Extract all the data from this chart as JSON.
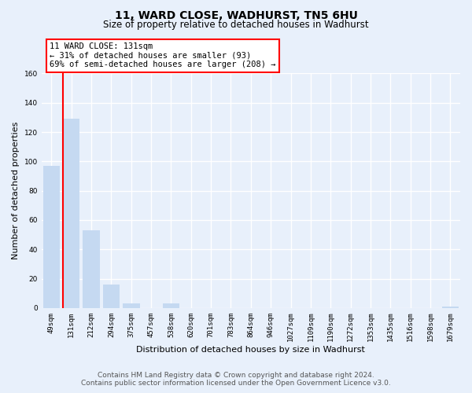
{
  "title": "11, WARD CLOSE, WADHURST, TN5 6HU",
  "subtitle": "Size of property relative to detached houses in Wadhurst",
  "bar_labels": [
    "49sqm",
    "131sqm",
    "212sqm",
    "294sqm",
    "375sqm",
    "457sqm",
    "538sqm",
    "620sqm",
    "701sqm",
    "783sqm",
    "864sqm",
    "946sqm",
    "1027sqm",
    "1109sqm",
    "1190sqm",
    "1272sqm",
    "1353sqm",
    "1435sqm",
    "1516sqm",
    "1598sqm",
    "1679sqm"
  ],
  "bar_values": [
    97,
    129,
    53,
    16,
    3,
    0,
    3,
    0,
    0,
    0,
    0,
    0,
    0,
    0,
    0,
    0,
    0,
    0,
    0,
    0,
    1
  ],
  "bar_color": "#c5d9f1",
  "highlight_bar_index": 1,
  "ylim": [
    0,
    160
  ],
  "yticks": [
    0,
    20,
    40,
    60,
    80,
    100,
    120,
    140,
    160
  ],
  "ylabel": "Number of detached properties",
  "xlabel": "Distribution of detached houses by size in Wadhurst",
  "annotation_title": "11 WARD CLOSE: 131sqm",
  "annotation_line1": "← 31% of detached houses are smaller (93)",
  "annotation_line2": "69% of semi-detached houses are larger (208) →",
  "footer_line1": "Contains HM Land Registry data © Crown copyright and database right 2024.",
  "footer_line2": "Contains public sector information licensed under the Open Government Licence v3.0.",
  "bg_color": "#e8f0fb",
  "plot_bg_color": "#e8f0fb",
  "grid_color": "#ffffff",
  "title_fontsize": 10,
  "subtitle_fontsize": 8.5,
  "annotation_fontsize": 7.5,
  "axis_label_fontsize": 8,
  "tick_fontsize": 6.5,
  "footer_fontsize": 6.5
}
